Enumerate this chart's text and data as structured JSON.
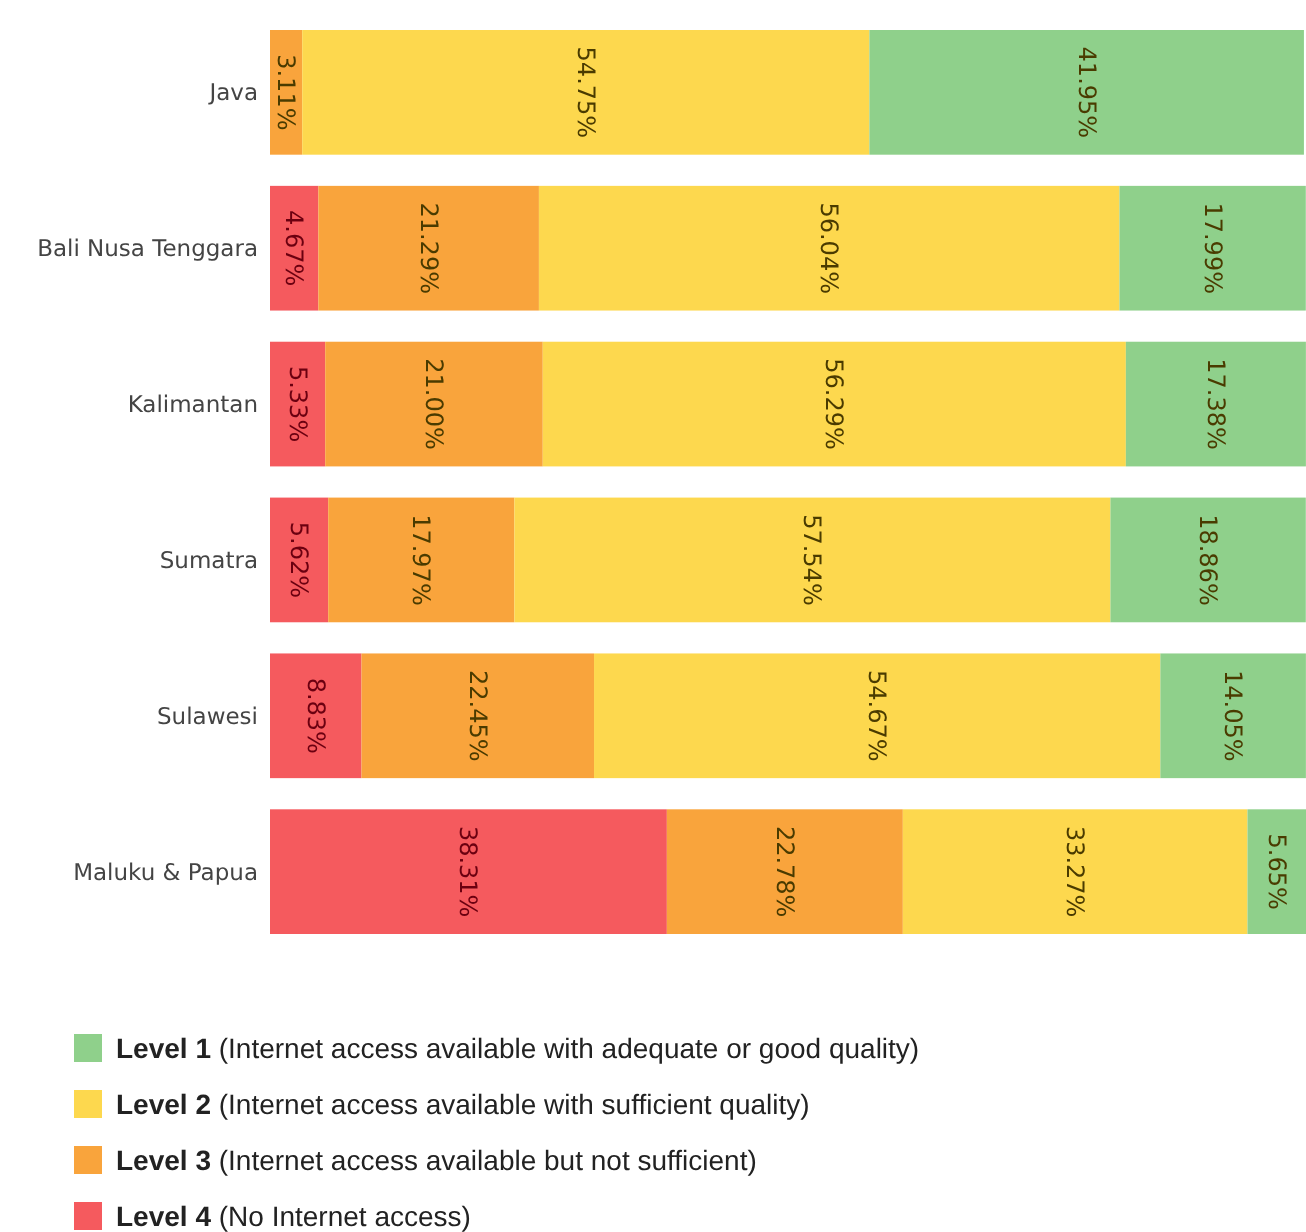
{
  "chart_data": {
    "type": "bar",
    "orientation": "horizontal",
    "stacked": true,
    "tick_labels": "y",
    "legend": "bottom",
    "categories": [
      "Java",
      "Bali Nusa Tenggara",
      "Kalimantan",
      "Sumatra",
      "Sulawesi",
      "Maluku & Papua"
    ],
    "series": [
      {
        "name": "Level 4 (No Internet access)",
        "color": "#f55a5e",
        "values": [
          null,
          4.67,
          5.33,
          5.62,
          8.83,
          38.31
        ],
        "value_labels": [
          null,
          "4.67%",
          "5.33%",
          "5.62%",
          "8.83%",
          "38.31%"
        ]
      },
      {
        "name": "Level 3 (Internet access available but not sufficient)",
        "color": "#f9a43c",
        "values": [
          3.11,
          21.29,
          21.0,
          17.97,
          22.45,
          22.78
        ],
        "value_labels": [
          "3.11%",
          "21.29%",
          "21.00%",
          "17.97%",
          "22.45%",
          "22.78%"
        ]
      },
      {
        "name": "Level 2 (Internet access available with sufficient quality)",
        "color": "#fdd84e",
        "values": [
          54.75,
          56.04,
          56.29,
          57.54,
          54.67,
          33.27
        ],
        "value_labels": [
          "54.75%",
          "56.04%",
          "56.29%",
          "57.54%",
          "54.67%",
          "33.27%"
        ]
      },
      {
        "name": "Level 1 (Internet access available with adequate or good quality)",
        "color": "#8fd08b",
        "values": [
          41.95,
          17.99,
          17.38,
          18.86,
          14.05,
          5.65
        ],
        "value_labels": [
          "41.95%",
          "17.99%",
          "17.38%",
          "18.86%",
          "14.05%",
          "5.65%"
        ]
      }
    ]
  }
}
